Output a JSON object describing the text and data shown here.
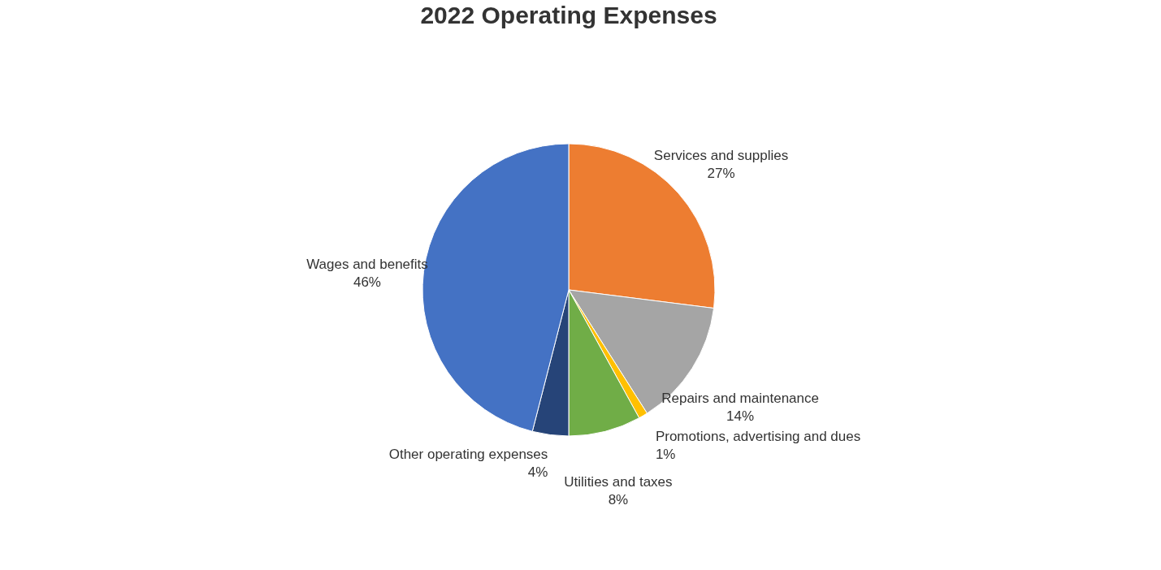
{
  "chart_data": {
    "type": "pie",
    "title": "2022 Operating Expenses",
    "categories": [
      "Services and supplies",
      "Repairs and maintenance",
      "Promotions, advertising and dues",
      "Utilities and taxes",
      "Other operating expenses",
      "Wages and benefits"
    ],
    "values": [
      27,
      14,
      1,
      8,
      4,
      46
    ],
    "value_labels": [
      "27%",
      "14%",
      "1%",
      "8%",
      "4%",
      "46%"
    ],
    "colors": [
      "#ed7d31",
      "#a5a5a5",
      "#ffc000",
      "#70ad47",
      "#264478",
      "#4472c4"
    ],
    "legend": false
  }
}
